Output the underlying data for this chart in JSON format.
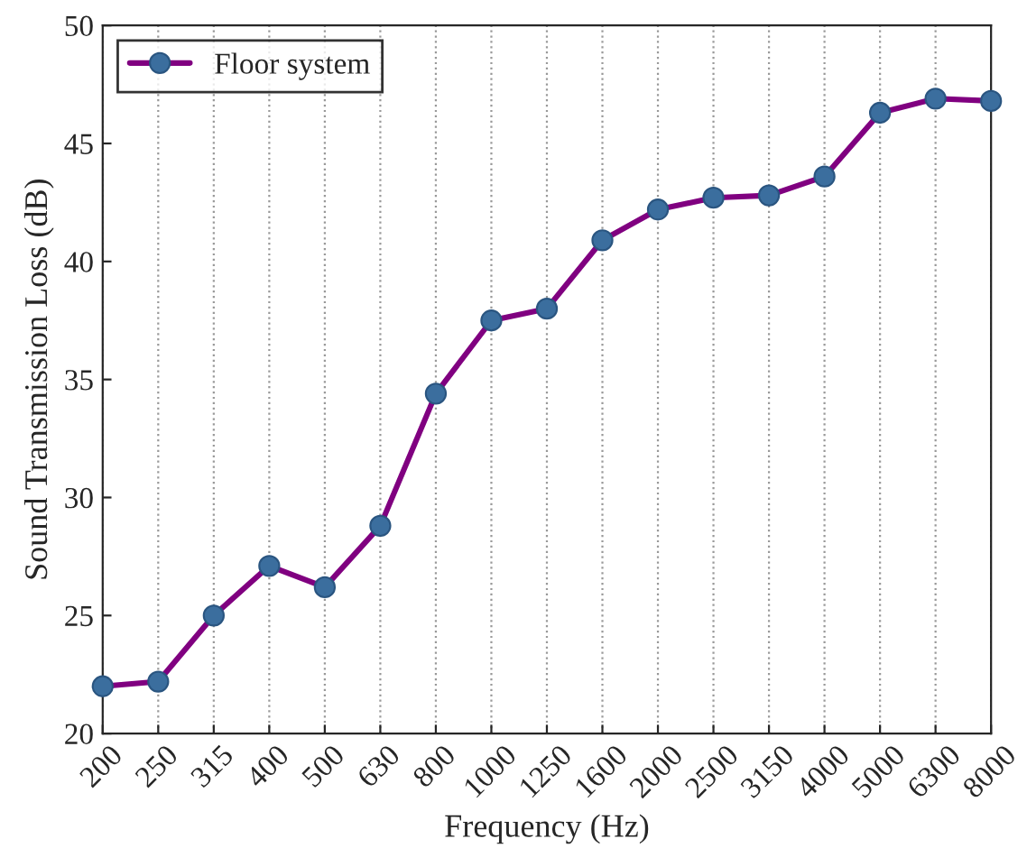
{
  "chart_data": {
    "type": "line",
    "xlabel": "Frequency (Hz)",
    "ylabel": "Sound Transmission Loss (dB)",
    "categories": [
      "200",
      "250",
      "315",
      "400",
      "500",
      "630",
      "800",
      "1000",
      "1250",
      "1600",
      "2000",
      "2500",
      "3150",
      "4000",
      "5000",
      "6300",
      "8000"
    ],
    "series": [
      {
        "name": "Floor system",
        "color": "#800080",
        "values": [
          22.0,
          22.2,
          25.0,
          27.1,
          26.2,
          28.8,
          34.4,
          37.5,
          38.0,
          40.9,
          42.2,
          42.7,
          42.8,
          43.6,
          46.3,
          46.9,
          46.8
        ]
      }
    ],
    "ylim": [
      20,
      50
    ],
    "yticks": [
      20,
      25,
      30,
      35,
      40,
      45,
      50
    ],
    "grid": "x",
    "legend": "top left",
    "marker": "circle",
    "line_style": "solid"
  }
}
